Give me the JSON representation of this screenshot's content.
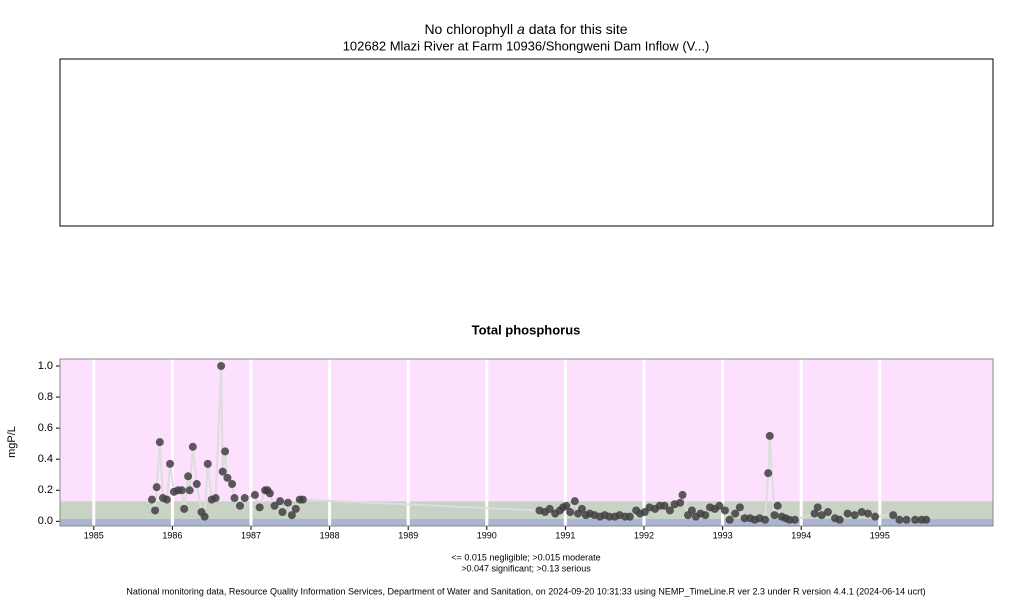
{
  "header": {
    "title_parts": [
      "No chlorophyll",
      "a",
      "data for this site"
    ],
    "subtitle": "102682 Mlazi River at Farm 10936/Shongweni Dam Inflow (V...)"
  },
  "chart_data": {
    "type": "scatter",
    "title": "Total phosphorus",
    "y_label": "mgP/L",
    "note": [
      "<= 0.015 negligible; >0.015 moderate",
      ">0.047 significant; >0.13 serious"
    ],
    "thresholds": [
      0.015,
      0.047,
      0.13
    ],
    "band_colors": [
      "#a9b5d2",
      "#c8d2c5",
      "#c8d2c5",
      "#fde0fd"
    ],
    "color": "#404040",
    "line_color": "#dddddd",
    "grid": true,
    "xlim": [
      1984.57,
      1996.44
    ],
    "ylim": [
      -0.03,
      1.045
    ],
    "xticks": [
      1985,
      1986,
      1987,
      1988,
      1989,
      1990,
      1991,
      1992,
      1993,
      1994,
      1995
    ],
    "yticks": [
      {
        "value": 0,
        "label": "0.0"
      },
      0.2,
      0.4,
      0.6,
      0.8,
      {
        "value": 1,
        "label": "1.0"
      }
    ],
    "x": [
      1985.74,
      1985.78,
      1985.8,
      1985.84,
      1985.88,
      1985.93,
      1985.97,
      1986.02,
      1986.07,
      1986.12,
      1986.15,
      1986.2,
      1986.22,
      1986.26,
      1986.31,
      1986.37,
      1986.41,
      1986.45,
      1986.5,
      1986.55,
      1986.62,
      1986.64,
      1986.67,
      1986.7,
      1986.76,
      1986.79,
      1986.86,
      1986.92,
      1987.05,
      1987.11,
      1987.18,
      1987.21,
      1987.24,
      1987.3,
      1987.37,
      1987.4,
      1987.47,
      1987.52,
      1987.57,
      1987.62,
      1987.66,
      1990.67,
      1990.74,
      1990.8,
      1990.87,
      1990.93,
      1990.97,
      1991.01,
      1991.06,
      1991.12,
      1991.16,
      1991.21,
      1991.26,
      1991.31,
      1991.37,
      1991.44,
      1991.5,
      1991.56,
      1991.63,
      1991.69,
      1991.76,
      1991.82,
      1991.9,
      1991.95,
      1992.01,
      1992.07,
      1992.14,
      1992.2,
      1992.26,
      1992.33,
      1992.39,
      1992.46,
      1992.49,
      1992.56,
      1992.61,
      1992.66,
      1992.72,
      1992.78,
      1992.84,
      1992.9,
      1992.96,
      1993.03,
      1993.09,
      1993.16,
      1993.22,
      1993.28,
      1993.35,
      1993.41,
      1993.47,
      1993.54,
      1993.58,
      1993.6,
      1993.66,
      1993.7,
      1993.75,
      1993.8,
      1993.85,
      1993.92,
      1994.17,
      1994.21,
      1994.26,
      1994.34,
      1994.43,
      1994.49,
      1994.59,
      1994.68,
      1994.77,
      1994.85,
      1994.94,
      1995.17,
      1995.25,
      1995.34,
      1995.45,
      1995.53,
      1995.59
    ],
    "values": [
      0.14,
      0.07,
      0.22,
      0.51,
      0.15,
      0.14,
      0.37,
      0.19,
      0.2,
      0.2,
      0.08,
      0.29,
      0.2,
      0.48,
      0.24,
      0.06,
      0.03,
      0.37,
      0.14,
      0.15,
      1.0,
      0.32,
      0.45,
      0.28,
      0.24,
      0.15,
      0.1,
      0.15,
      0.17,
      0.09,
      0.2,
      0.2,
      0.18,
      0.1,
      0.13,
      0.06,
      0.12,
      0.04,
      0.08,
      0.14,
      0.14,
      0.07,
      0.06,
      0.08,
      0.05,
      0.07,
      0.09,
      0.1,
      0.06,
      0.13,
      0.05,
      0.08,
      0.04,
      0.05,
      0.04,
      0.03,
      0.04,
      0.03,
      0.03,
      0.04,
      0.03,
      0.03,
      0.07,
      0.05,
      0.06,
      0.09,
      0.08,
      0.1,
      0.1,
      0.07,
      0.11,
      0.12,
      0.17,
      0.04,
      0.07,
      0.03,
      0.05,
      0.04,
      0.09,
      0.08,
      0.1,
      0.07,
      0.01,
      0.05,
      0.09,
      0.02,
      0.02,
      0.01,
      0.02,
      0.01,
      0.31,
      0.55,
      0.04,
      0.1,
      0.03,
      0.02,
      0.01,
      0.01,
      0.05,
      0.09,
      0.04,
      0.06,
      0.02,
      0.01,
      0.05,
      0.04,
      0.06,
      0.05,
      0.03,
      0.04,
      0.01,
      0.01,
      0.01,
      0.01,
      0.01
    ]
  },
  "footer": "National monitoring data, Resource Quality Information Services, Department of Water and Sanitation, on 2024-09-20 10:31:33 using NEMP_TimeLine.R ver 2.3 under R version 4.4.1 (2024-06-14 ucrt)"
}
